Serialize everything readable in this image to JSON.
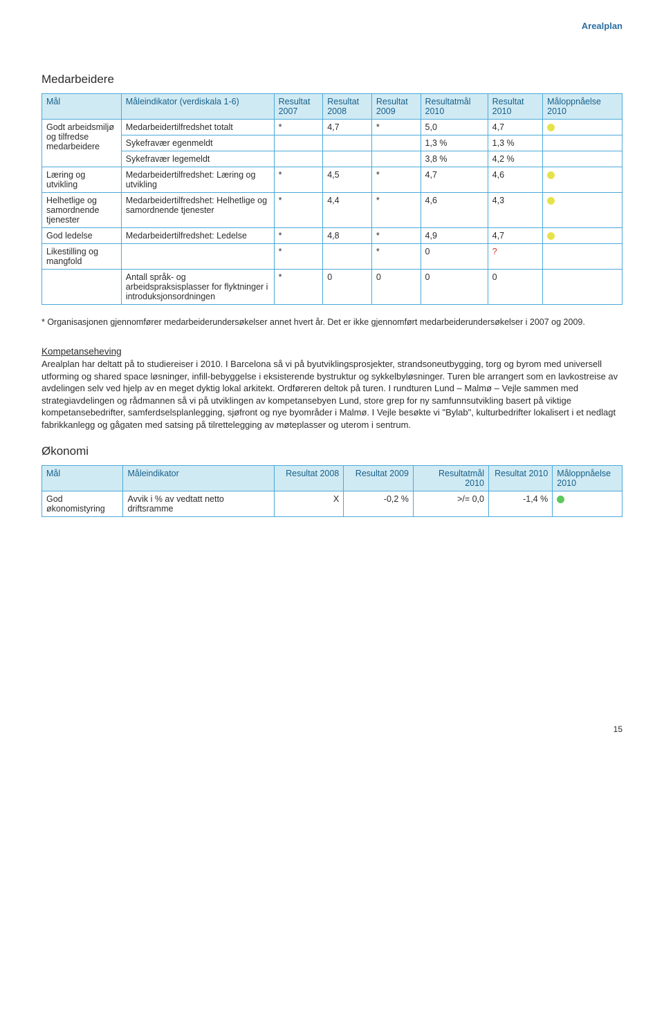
{
  "page_header": "Arealplan",
  "page_number": "15",
  "colors": {
    "header_bg": "#d0eaf4",
    "border": "#4aa8d8",
    "header_text": "#165f88",
    "dot_yellow": "#e6e24a",
    "dot_green": "#5cc95c",
    "qmark": "#d93025"
  },
  "medarbeidere": {
    "title": "Medarbeidere",
    "headers": [
      "Mål",
      "Måleindikator (verdiskala 1-6)",
      "Resultat 2007",
      "Resultat 2008",
      "Resultat 2009",
      "Resultatmål 2010",
      "Resultat 2010",
      "Måloppnåelse 2010"
    ],
    "row_groups": [
      {
        "mal": "Godt arbeidsmiljø og tilfredse medarbeidere",
        "rows": [
          {
            "ind": "Medarbeidertilfredshet totalt",
            "r07": "*",
            "r08": "4,7",
            "r09": "*",
            "rm10": "5,0",
            "r10": "4,7",
            "dot": "#e6e24a"
          },
          {
            "ind": "Sykefravær egenmeldt",
            "r07": "",
            "r08": "",
            "r09": "",
            "rm10": "1,3 %",
            "r10": "1,3 %",
            "dot": ""
          },
          {
            "ind": "Sykefravær legemeldt",
            "r07": "",
            "r08": "",
            "r09": "",
            "rm10": "3,8 %",
            "r10": "4,2 %",
            "dot": ""
          }
        ]
      },
      {
        "mal": "Læring og utvikling",
        "rows": [
          {
            "ind": "Medarbeidertilfredshet: Læring og utvikling",
            "r07": "*",
            "r08": "4,5",
            "r09": "*",
            "rm10": "4,7",
            "r10": "4,6",
            "dot": "#e6e24a"
          }
        ]
      },
      {
        "mal": "Helhetlige og samordnende tjenester",
        "rows": [
          {
            "ind": "Medarbeidertilfredshet: Helhetlige og samordnende tjenester",
            "r07": "*",
            "r08": "4,4",
            "r09": "*",
            "rm10": "4,6",
            "r10": "4,3",
            "dot": "#e6e24a"
          }
        ]
      },
      {
        "mal": "God ledelse",
        "rows": [
          {
            "ind": "Medarbeidertilfredshet: Ledelse",
            "r07": "*",
            "r08": "4,8",
            "r09": "*",
            "rm10": "4,9",
            "r10": "4,7",
            "dot": "#e6e24a"
          }
        ]
      },
      {
        "mal": "Likestilling og mangfold",
        "rows": [
          {
            "ind": "",
            "r07": "*",
            "r08": "",
            "r09": "*",
            "rm10": "0",
            "r10": "?",
            "dot": "",
            "qmark": true
          }
        ]
      },
      {
        "mal": "",
        "rows": [
          {
            "ind": "Antall språk- og arbeidspraksisplasser for flyktninger i introduksjonsordningen",
            "r07": "*",
            "r08": "0",
            "r09": "0",
            "rm10": "0",
            "r10": "0",
            "dot": ""
          }
        ]
      }
    ],
    "footnote": "* Organisasjonen gjennomfører medarbeiderundersøkelser annet hvert år. Det er ikke gjennomført medarbeiderundersøkelser i 2007 og 2009."
  },
  "kompetanse": {
    "title": "Kompetanseheving",
    "body": "Arealplan har deltatt på to studiereiser i 2010. I Barcelona så vi på byutviklingsprosjekter, strandsoneutbygging, torg og byrom med universell utforming og shared space løsninger, infill-bebyggelse i eksisterende bystruktur og sykkelbyløsninger. Turen ble arrangert som en lavkostreise av avdelingen selv ved hjelp av en meget dyktig lokal arkitekt. Ordføreren deltok på turen. I rundturen Lund – Malmø – Vejle sammen med strategiavdelingen og rådmannen så vi på utviklingen av kompetansebyen Lund, store grep for ny samfunnsutvikling basert på viktige kompetansebedrifter, samferdselsplanlegging, sjøfront og nye byområder i Malmø. I Vejle besøkte vi \"Bylab\", kulturbedrifter lokalisert i et nedlagt fabrikkanlegg og gågaten med satsing på tilrettelegging av møteplasser og uterom i sentrum."
  },
  "okonomi": {
    "title": "Økonomi",
    "headers": [
      "Mål",
      "Måleindikator",
      "Resultat 2008",
      "Resultat 2009",
      "Resultatmål 2010",
      "Resultat 2010",
      "Måloppnåelse 2010"
    ],
    "row": {
      "mal": "God økonomistyring",
      "ind": "Avvik i % av vedtatt netto driftsramme",
      "r08": "X",
      "r09": "-0,2 %",
      "rm10": ">/= 0,0",
      "r10": "-1,4 %",
      "dot": "#5cc95c"
    }
  }
}
